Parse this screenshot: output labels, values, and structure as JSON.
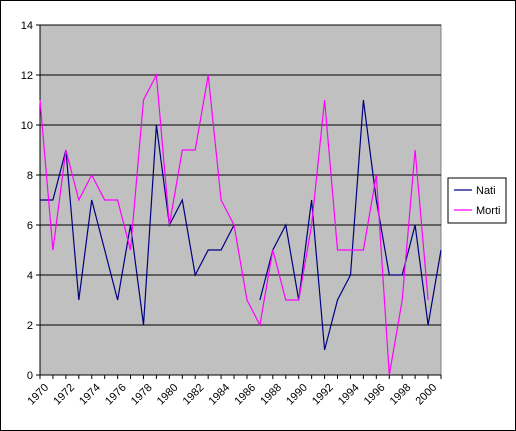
{
  "chart_data": {
    "type": "line",
    "x": [
      1970,
      1971,
      1972,
      1973,
      1974,
      1975,
      1976,
      1977,
      1978,
      1979,
      1980,
      1981,
      1982,
      1983,
      1984,
      1985,
      1986,
      1987,
      1988,
      1989,
      1990,
      1991,
      1992,
      1993,
      1994,
      1995,
      1996,
      1997,
      1998,
      1999,
      2000,
      2001
    ],
    "x_tick_labels": [
      "1970",
      "1972",
      "1974",
      "1976",
      "1978",
      "1980",
      "1982",
      "1984",
      "1986",
      "1988",
      "1990",
      "1992",
      "1994",
      "1996",
      "1998",
      "2000"
    ],
    "y_tick_labels": [
      "0",
      "2",
      "4",
      "6",
      "8",
      "10",
      "12",
      "14"
    ],
    "ylim": [
      0,
      14
    ],
    "grid": "horizontal",
    "plot_background": "#c0c0c0",
    "legend_position": "right",
    "series": [
      {
        "name": "Nati",
        "color": "#000080",
        "values": [
          7,
          7,
          9,
          3,
          7,
          5,
          3,
          6,
          2,
          10,
          6,
          7,
          4,
          5,
          5,
          6,
          null,
          3,
          5,
          6,
          3,
          7,
          1,
          3,
          4,
          11,
          7,
          4,
          4,
          6,
          2,
          5
        ]
      },
      {
        "name": "Morti",
        "color": "#ff00ff",
        "values": [
          11,
          5,
          9,
          7,
          8,
          7,
          7,
          5,
          11,
          12,
          6,
          9,
          9,
          12,
          7,
          6,
          3,
          2,
          5,
          3,
          3,
          6,
          11,
          5,
          5,
          5,
          8,
          0,
          3,
          9,
          3,
          null
        ]
      }
    ]
  }
}
